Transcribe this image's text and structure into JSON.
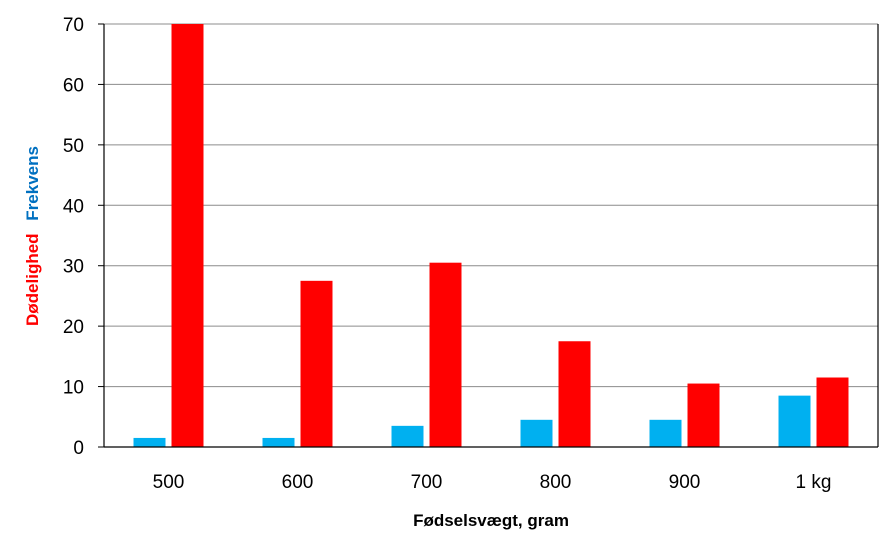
{
  "chart_data": {
    "type": "bar",
    "categories": [
      "500",
      "600",
      "700",
      "800",
      "900",
      "1 kg"
    ],
    "series": [
      {
        "name": "Frekvens",
        "color": "#00B0F0",
        "values": [
          1.5,
          1.5,
          3.5,
          4.5,
          4.5,
          8.5
        ]
      },
      {
        "name": "Dødelighed",
        "color": "#FF0000",
        "values": [
          70,
          27.5,
          30.5,
          17.5,
          10.5,
          11.5
        ]
      }
    ],
    "xlabel": "Fødselsvægt, gram",
    "ylabel_parts": [
      {
        "text": "Dødelighed",
        "color": "#FF0000"
      },
      {
        "text": "Frekvens",
        "color": "#0070C0"
      }
    ],
    "ylim": [
      0,
      70
    ],
    "yticks": [
      0,
      10,
      20,
      30,
      40,
      50,
      60,
      70
    ],
    "grid": true
  }
}
